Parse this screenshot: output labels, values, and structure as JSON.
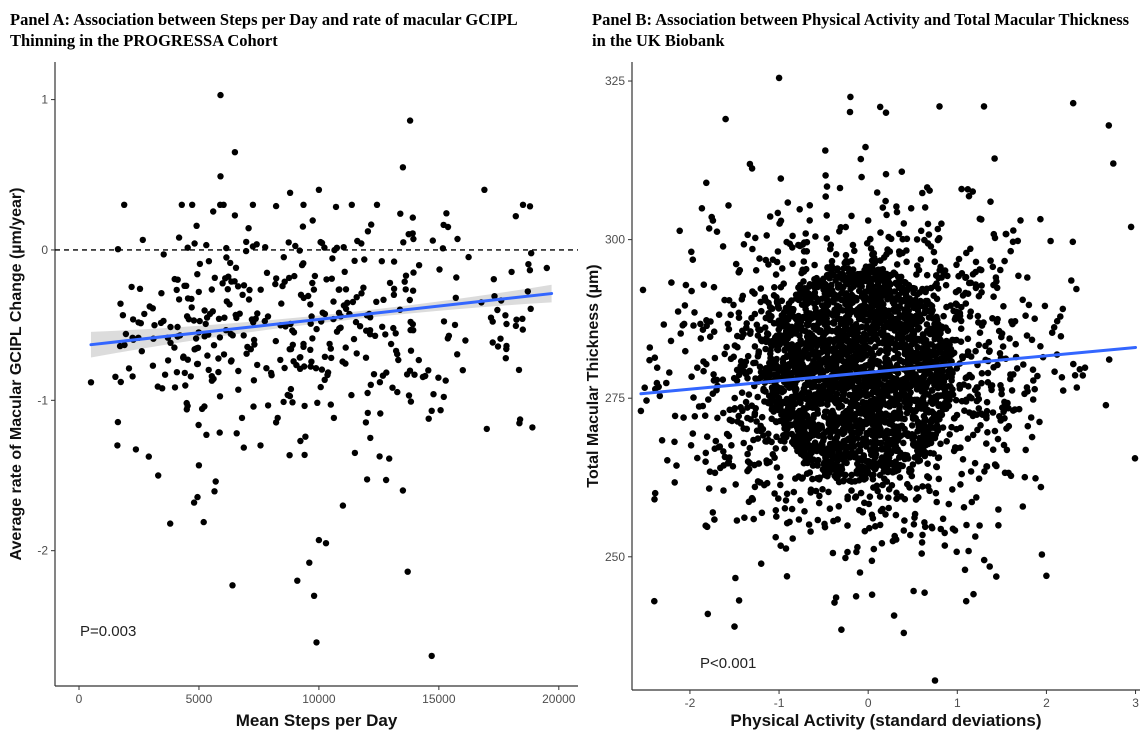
{
  "panels": {
    "a_title": "Panel A: Association between Steps per Day and rate of macular GCIPL Thinning in the PROGRESSA Cohort",
    "b_title": "Panel B: Association between Physical Activity and Total Macular Thickness in the UK Biobank"
  },
  "chart_data": [
    {
      "type": "scatter",
      "title": "Panel A: Association between Steps per Day and rate of macular GCIPL Thinning in the PROGRESSA Cohort",
      "xlabel": "Mean Steps per Day",
      "ylabel": "Average rate of Macular GCIPL Change (µm/year)",
      "xlim": [
        -1000,
        20800
      ],
      "ylim": [
        -2.9,
        1.25
      ],
      "xticks": [
        0,
        5000,
        10000,
        15000,
        20000
      ],
      "xtick_labels": [
        "0",
        "5000",
        "10000",
        "15000",
        "20000"
      ],
      "yticks": [
        1,
        0,
        -1,
        -2
      ],
      "ytick_labels": [
        "1",
        "0",
        "-1",
        "-2"
      ],
      "reference_line": {
        "y": 0,
        "style": "dashed"
      },
      "fit_line": {
        "x": [
          500,
          19700
        ],
        "y": [
          -0.63,
          -0.29
        ],
        "color": "#3366ff",
        "confidence_band": true
      },
      "annotation": "P=0.003",
      "grid": false,
      "n_generated_points": 420,
      "points": [
        [
          5900,
          1.03
        ],
        [
          6500,
          0.65
        ],
        [
          13800,
          0.86
        ],
        [
          5900,
          0.49
        ],
        [
          13500,
          0.55
        ],
        [
          16900,
          0.4
        ],
        [
          18800,
          0.29
        ],
        [
          10000,
          0.4
        ],
        [
          8800,
          0.38
        ],
        [
          6500,
          0.23
        ],
        [
          9800,
          -2.3
        ],
        [
          9900,
          -2.61
        ],
        [
          14700,
          -2.7
        ],
        [
          6400,
          -2.23
        ],
        [
          13700,
          -2.14
        ],
        [
          9100,
          -2.2
        ],
        [
          9600,
          -2.08
        ],
        [
          10000,
          -1.93
        ],
        [
          500,
          -0.88
        ],
        [
          13500,
          -1.6
        ],
        [
          11500,
          -1.35
        ],
        [
          11000,
          -1.7
        ],
        [
          14700,
          -1.07
        ],
        [
          17000,
          -1.19
        ],
        [
          18900,
          -1.18
        ],
        [
          19500,
          -0.12
        ],
        [
          18500,
          -0.53
        ],
        [
          16000,
          -0.8
        ],
        [
          12800,
          -1.53
        ],
        [
          3300,
          -1.5
        ],
        [
          4800,
          -1.68
        ],
        [
          5700,
          -1.54
        ],
        [
          3800,
          -1.82
        ],
        [
          5200,
          -1.81
        ],
        [
          1600,
          -1.3
        ]
      ]
    },
    {
      "type": "scatter",
      "title": "Panel B: Association between Physical Activity and Total Macular Thickness in the UK Biobank",
      "xlabel": "Physical Activity (standard deviations)",
      "ylabel": "Total Macular Thickness (µm)",
      "xlim": [
        -2.65,
        3.05
      ],
      "ylim": [
        229,
        328
      ],
      "xticks": [
        -2,
        -1,
        0,
        1,
        2,
        3
      ],
      "xtick_labels": [
        "-2",
        "-1",
        "0",
        "1",
        "2",
        "3"
      ],
      "yticks": [
        325,
        300,
        275,
        250
      ],
      "ytick_labels": [
        "325",
        "300",
        "275",
        "250"
      ],
      "fit_line": {
        "x": [
          -2.55,
          3.0
        ],
        "y": [
          275.7,
          283.0
        ],
        "color": "#3366ff"
      },
      "annotation": "P<0.001",
      "grid": false,
      "cloud": {
        "center_x": -0.1,
        "center_y": 279,
        "core_rx": 1.05,
        "core_ry": 17
      },
      "n_generated_points": 3400,
      "points": [
        [
          -1.0,
          325.5
        ],
        [
          -0.2,
          322.5
        ],
        [
          0.8,
          321
        ],
        [
          0.2,
          320
        ],
        [
          2.7,
          318
        ],
        [
          -2.4,
          243
        ],
        [
          0.75,
          230.5
        ],
        [
          0.4,
          238
        ],
        [
          -0.3,
          238.5
        ],
        [
          1.1,
          243
        ],
        [
          2.0,
          247
        ],
        [
          -1.8,
          241
        ],
        [
          -1.5,
          239
        ],
        [
          2.3,
          321.5
        ],
        [
          1.3,
          321
        ],
        [
          2.95,
          302
        ],
        [
          -2.55,
          273
        ],
        [
          -2.45,
          283
        ],
        [
          2.75,
          312
        ],
        [
          -1.6,
          319
        ]
      ]
    }
  ]
}
